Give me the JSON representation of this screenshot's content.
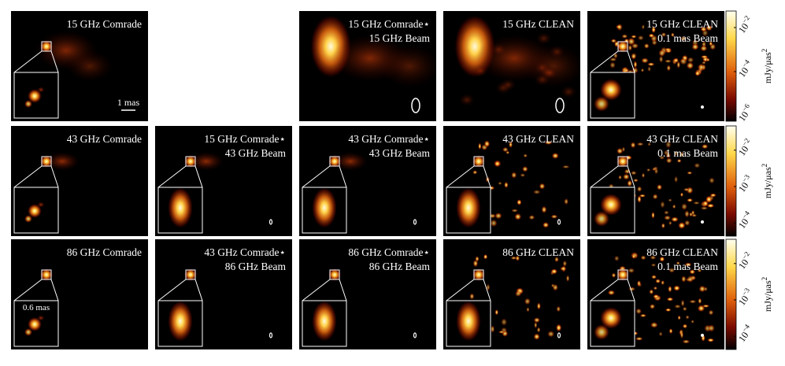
{
  "rows": [
    {
      "panels": [
        {
          "lines": [
            "15 GHz Comrade"
          ],
          "scale": "1 mas"
        },
        null,
        {
          "lines": [
            "15 GHz Comrade⋆",
            "15 GHz Beam"
          ]
        },
        {
          "lines": [
            "15 GHz CLEAN"
          ]
        },
        {
          "lines": [
            "15 GHz CLEAN",
            "0.1 mas Beam"
          ]
        }
      ],
      "colorbar": {
        "unit": "mJy/μas",
        "unit_power": "2",
        "ticks": [
          {
            "mantissa": "10",
            "exponent": "−2"
          },
          {
            "mantissa": "10",
            "exponent": "−4"
          },
          {
            "mantissa": "10",
            "exponent": "−6"
          }
        ]
      }
    },
    {
      "panels": [
        {
          "lines": [
            "43 GHz Comrade"
          ]
        },
        {
          "lines": [
            "15 GHz Comrade⋆",
            "43 GHz Beam"
          ]
        },
        {
          "lines": [
            "43 GHz Comrade⋆",
            "43 GHz Beam"
          ]
        },
        {
          "lines": [
            "43 GHz CLEAN"
          ]
        },
        {
          "lines": [
            "43 GHz CLEAN",
            "0.1 mas Beam"
          ]
        }
      ],
      "colorbar": {
        "unit": "mJy/μas",
        "unit_power": "2",
        "ticks": [
          {
            "mantissa": "10",
            "exponent": "−2"
          },
          {
            "mantissa": "10",
            "exponent": "−3"
          },
          {
            "mantissa": "10",
            "exponent": "−4"
          }
        ]
      }
    },
    {
      "panels": [
        {
          "lines": [
            "86 GHz Comrade"
          ],
          "inset_scale": "0.6 mas"
        },
        {
          "lines": [
            "43 GHz Comrade⋆",
            "86 GHz Beam"
          ]
        },
        {
          "lines": [
            "86 GHz Comrade⋆",
            "86 GHz Beam"
          ]
        },
        {
          "lines": [
            "86 GHz CLEAN"
          ]
        },
        {
          "lines": [
            "86 GHz CLEAN",
            "0.1 mas Beam"
          ]
        }
      ],
      "colorbar": {
        "unit": "mJy/μas",
        "unit_power": "2",
        "ticks": [
          {
            "mantissa": "10",
            "exponent": "−2"
          },
          {
            "mantissa": "10",
            "exponent": "−3"
          },
          {
            "mantissa": "10",
            "exponent": "−4"
          }
        ]
      }
    }
  ]
}
